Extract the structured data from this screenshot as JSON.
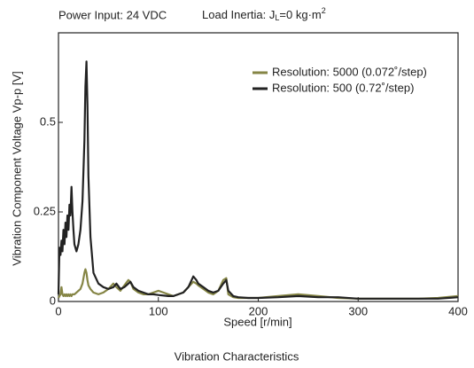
{
  "chart_data": {
    "type": "line",
    "header": "Power Input: 24 VDC",
    "inertia": [
      "Load Inertia: J",
      "L",
      "=0 kg·m",
      "2"
    ],
    "ylabel": "Vibration Component Voltage Vp-p [V]",
    "xlabel": "Speed [r/min]",
    "caption": "Vibration Characteristics",
    "legend": "upper right",
    "xlim": [
      0,
      400
    ],
    "xticks": [
      0,
      100,
      200,
      300,
      400
    ],
    "ylim": [
      0,
      0.75
    ],
    "yticks": [
      0,
      0.25,
      0.5
    ],
    "x": [
      0,
      1,
      2,
      3,
      4,
      5,
      6,
      7,
      8,
      9,
      10,
      11,
      12,
      13,
      14,
      15,
      16,
      18,
      20,
      22,
      24,
      26,
      27,
      28,
      29,
      30,
      32,
      35,
      40,
      45,
      50,
      55,
      58,
      62,
      66,
      70,
      72,
      75,
      80,
      85,
      90,
      95,
      100,
      110,
      115,
      120,
      125,
      130,
      135,
      138,
      140,
      145,
      150,
      155,
      160,
      165,
      168,
      170,
      175,
      180,
      190,
      200,
      220,
      240,
      260,
      280,
      300,
      320,
      340,
      360,
      380,
      400
    ],
    "series": [
      {
        "name": "Resolution: 5000 (0.072˚/step)",
        "color": "#858545",
        "values": [
          0.01,
          0.015,
          0.02,
          0.04,
          0.02,
          0.015,
          0.02,
          0.015,
          0.02,
          0.015,
          0.02,
          0.015,
          0.02,
          0.015,
          0.02,
          0.02,
          0.02,
          0.025,
          0.03,
          0.035,
          0.05,
          0.08,
          0.09,
          0.08,
          0.06,
          0.045,
          0.035,
          0.025,
          0.02,
          0.025,
          0.035,
          0.05,
          0.04,
          0.03,
          0.045,
          0.06,
          0.055,
          0.035,
          0.025,
          0.02,
          0.02,
          0.025,
          0.03,
          0.02,
          0.015,
          0.02,
          0.025,
          0.04,
          0.055,
          0.05,
          0.045,
          0.035,
          0.025,
          0.02,
          0.03,
          0.06,
          0.065,
          0.02,
          0.012,
          0.01,
          0.01,
          0.01,
          0.015,
          0.02,
          0.015,
          0.01,
          0.008,
          0.008,
          0.008,
          0.008,
          0.01,
          0.015
        ]
      },
      {
        "name": "Resolution: 500 (0.72˚/step)",
        "color": "#222222",
        "values": [
          0.02,
          0.15,
          0.13,
          0.17,
          0.14,
          0.2,
          0.16,
          0.22,
          0.18,
          0.24,
          0.2,
          0.27,
          0.24,
          0.32,
          0.25,
          0.2,
          0.16,
          0.14,
          0.16,
          0.2,
          0.28,
          0.45,
          0.6,
          0.67,
          0.55,
          0.35,
          0.18,
          0.08,
          0.05,
          0.04,
          0.035,
          0.04,
          0.05,
          0.035,
          0.04,
          0.05,
          0.055,
          0.04,
          0.03,
          0.025,
          0.02,
          0.02,
          0.018,
          0.015,
          0.015,
          0.02,
          0.025,
          0.04,
          0.07,
          0.06,
          0.05,
          0.04,
          0.03,
          0.025,
          0.03,
          0.05,
          0.06,
          0.03,
          0.015,
          0.012,
          0.01,
          0.01,
          0.012,
          0.015,
          0.012,
          0.012,
          0.008,
          0.008,
          0.008,
          0.008,
          0.008,
          0.012
        ]
      }
    ]
  }
}
